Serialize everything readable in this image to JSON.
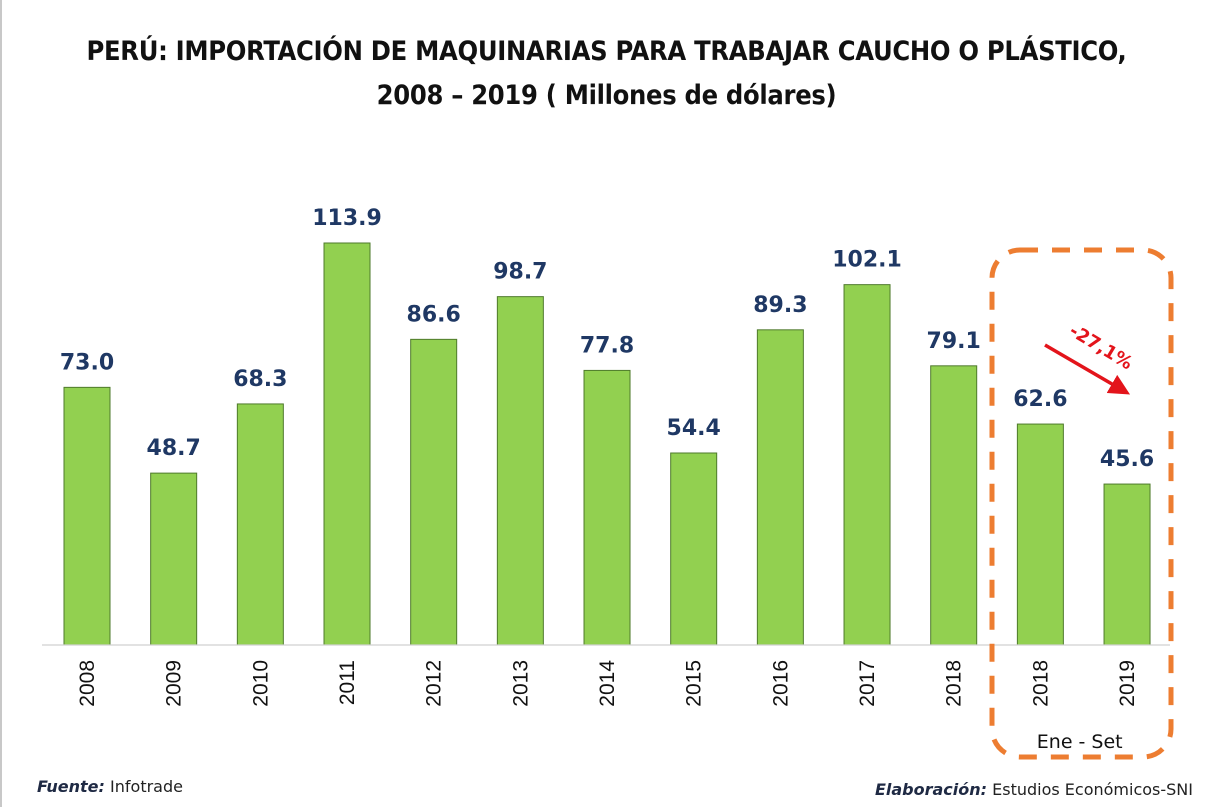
{
  "chart_data": {
    "type": "bar",
    "title": "PERÚ: IMPORTACIÓN DE MAQUINARIAS PARA TRABAJAR CAUCHO O PLÁSTICO,",
    "subtitle": "2008 – 2019 ( Millones de dólares)",
    "xlabel": "",
    "ylabel": "",
    "categories": [
      "2008",
      "2009",
      "2010",
      "2011",
      "2012",
      "2013",
      "2014",
      "2015",
      "2016",
      "2017",
      "2018",
      "2018",
      "2019"
    ],
    "values": [
      73.0,
      48.7,
      68.3,
      113.9,
      86.6,
      98.7,
      77.8,
      54.4,
      89.3,
      102.1,
      79.1,
      62.6,
      45.6
    ],
    "value_labels": [
      "73.0",
      "48.7",
      "68.3",
      "113.9",
      "86.6",
      "98.7",
      "77.8",
      "54.4",
      "89.3",
      "102.1",
      "79.1",
      "62.6",
      "45.6"
    ],
    "ylim": [
      0,
      120
    ],
    "grid": false,
    "y_axis_visible": false,
    "bar_color": "#92D050",
    "bar_border_color": "#4E7A2B",
    "label_color": "#1F3864",
    "highlight": {
      "category_indices": [
        11,
        12
      ],
      "period_label": "Ene - Set",
      "box_color": "#ED7D31",
      "change_label": "-27,1%",
      "change_color": "#E3141B"
    }
  },
  "footer": {
    "source_label": "Fuente:",
    "source_value": "Infotrade",
    "credit_label": "Elaboración:",
    "credit_value": "Estudios Económicos-SNI"
  }
}
